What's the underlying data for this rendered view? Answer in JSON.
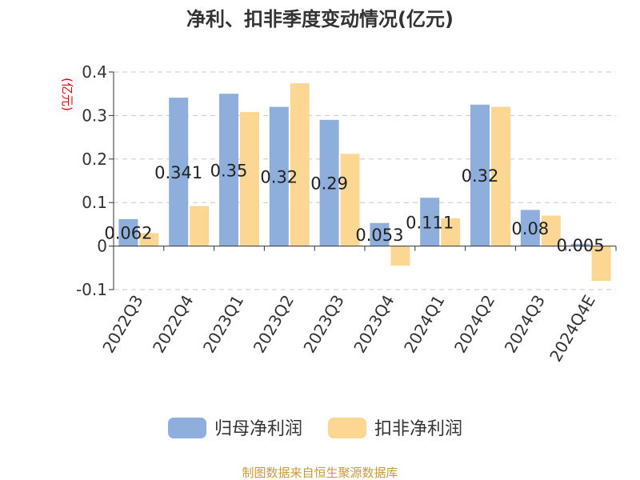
{
  "chart_data": {
    "type": "bar",
    "title": "净利、扣非季度变动情况(亿元)",
    "unit_label": "(亿元)",
    "categories": [
      "2022Q3",
      "2022Q4",
      "2023Q1",
      "2023Q2",
      "2023Q3",
      "2023Q4",
      "2024Q1",
      "2024Q2",
      "2024Q3",
      "2024Q4E"
    ],
    "series": [
      {
        "name": "归母净利润",
        "color": "#8eaedb",
        "values": [
          0.062,
          0.341,
          0.35,
          0.32,
          0.29,
          0.053,
          0.111,
          0.325,
          0.083,
          0.005
        ],
        "labels": [
          "0.062",
          "0.341",
          "0.35",
          "0.32",
          "0.29",
          "0.053",
          "0.111",
          "0.32",
          "0.08",
          "0.005"
        ]
      },
      {
        "name": "扣非净利润",
        "color": "#fcd794",
        "values": [
          0.03,
          0.092,
          0.308,
          0.374,
          0.212,
          -0.045,
          0.064,
          0.32,
          0.07,
          -0.08
        ]
      }
    ],
    "y_ticks": [
      "0.4",
      "0.3",
      "0.2",
      "0.1",
      "0",
      "-0.1"
    ],
    "ylim": [
      -0.1,
      0.4
    ],
    "grid": true,
    "legend_position": "bottom"
  },
  "source": "制图数据来自恒生聚源数据库"
}
